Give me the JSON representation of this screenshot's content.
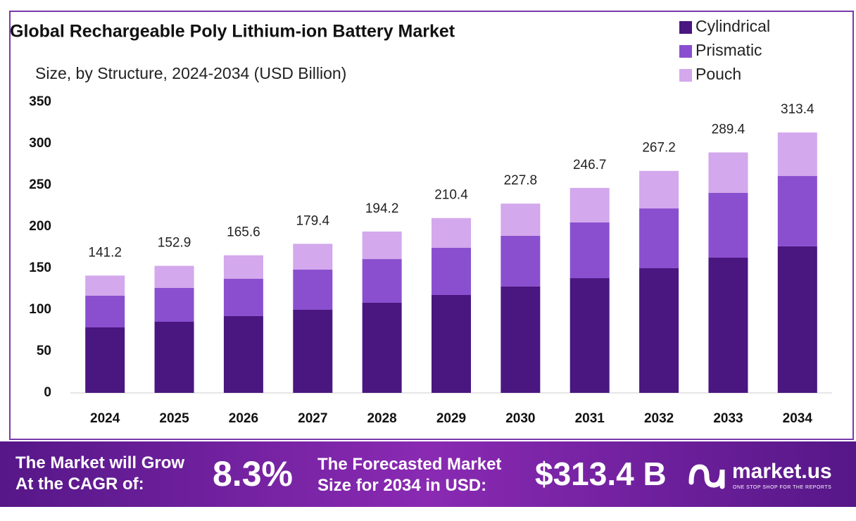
{
  "chart_data": {
    "type": "stacked-bar",
    "title": "Global Rechargeable Poly Lithium-ion Battery Market",
    "subtitle": "Size, by Structure, 2024-2034 (USD Billion)",
    "categories": [
      "2024",
      "2025",
      "2026",
      "2027",
      "2028",
      "2029",
      "2030",
      "2031",
      "2032",
      "2033",
      "2034"
    ],
    "series": [
      {
        "name": "Cylindrical",
        "color": "#4a1680",
        "values": [
          78.8,
          85.6,
          92.4,
          100.0,
          108.5,
          117.8,
          128.0,
          138.1,
          150.0,
          162.7,
          176.3
        ]
      },
      {
        "name": "Prismatic",
        "color": "#8a4fcf",
        "values": [
          38.2,
          40.7,
          44.9,
          48.3,
          52.5,
          56.8,
          61.0,
          67.0,
          72.0,
          78.0,
          84.7
        ]
      },
      {
        "name": "Pouch",
        "color": "#d3a8ec",
        "values": [
          24.2,
          26.6,
          28.3,
          31.1,
          33.2,
          35.8,
          38.8,
          41.6,
          45.2,
          48.7,
          52.4
        ]
      }
    ],
    "totals": [
      141.2,
      152.9,
      165.6,
      179.4,
      194.2,
      210.4,
      227.8,
      246.7,
      267.2,
      289.4,
      313.4
    ],
    "ylim": [
      0,
      350
    ],
    "yticks": [
      0,
      50,
      100,
      150,
      200,
      250,
      300,
      350
    ],
    "grid": false,
    "legend": "top-right"
  },
  "footer": {
    "cagr_label": [
      "The Market will Grow",
      "At the CAGR of:"
    ],
    "cagr": "8.3%",
    "forecast_label": [
      "The Forecasted Market",
      "Size for 2034 in USD:"
    ],
    "forecast": "$313.4 B",
    "brand": "market.us",
    "tagline": "ONE STOP SHOP FOR THE REPORTS"
  }
}
